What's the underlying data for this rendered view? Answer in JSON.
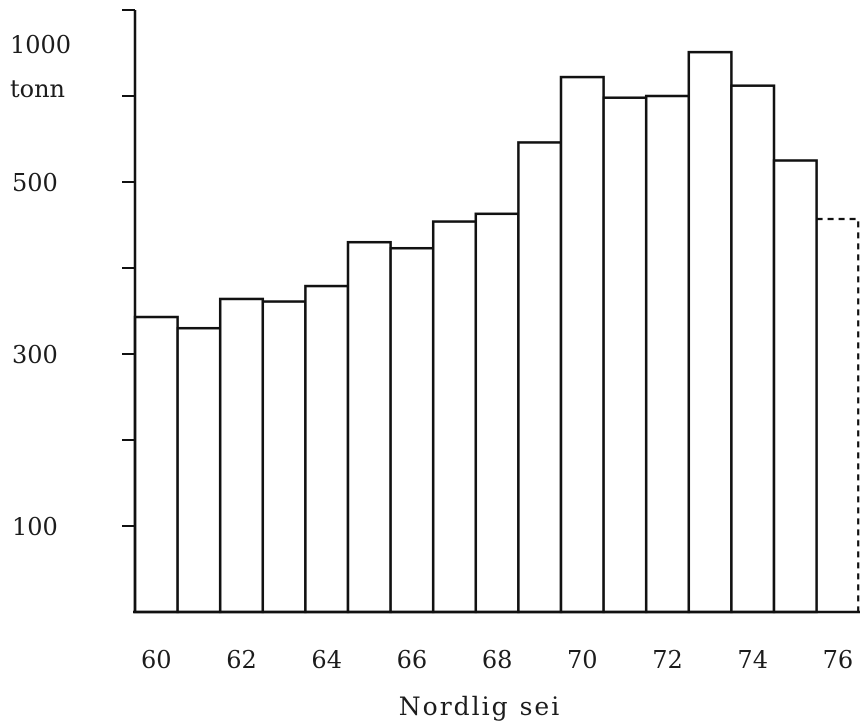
{
  "chart_data": {
    "type": "bar",
    "ylabel_lines": [
      "1000",
      "tonn"
    ],
    "xlabel": "Nordlig sei",
    "y_tick_labels": [
      {
        "value": 100,
        "label": "100"
      },
      {
        "value": 300,
        "label": "300"
      },
      {
        "value": 500,
        "label": "500"
      }
    ],
    "y_tick_marks": [
      100,
      200,
      300,
      400,
      500,
      600,
      700
    ],
    "x_tick_labels": [
      "60",
      "62",
      "64",
      "66",
      "68",
      "70",
      "72",
      "74",
      "76"
    ],
    "x_tick_label_years": [
      60,
      62,
      64,
      66,
      68,
      70,
      72,
      74,
      76
    ],
    "ylim": [
      0,
      770
    ],
    "xlim": [
      60,
      76
    ],
    "years": [
      60,
      61,
      62,
      63,
      64,
      65,
      66,
      67,
      68,
      69,
      70,
      71,
      72,
      73,
      74,
      75,
      76
    ],
    "values": [
      343,
      330,
      364,
      361,
      379,
      430,
      423,
      454,
      463,
      546,
      622,
      598,
      600,
      651,
      612,
      525,
      457
    ],
    "estimated": [
      false,
      false,
      false,
      false,
      false,
      false,
      false,
      false,
      false,
      false,
      false,
      false,
      false,
      false,
      false,
      false,
      true
    ],
    "bar_fill": "#ffffff",
    "line_color": "#111111"
  }
}
